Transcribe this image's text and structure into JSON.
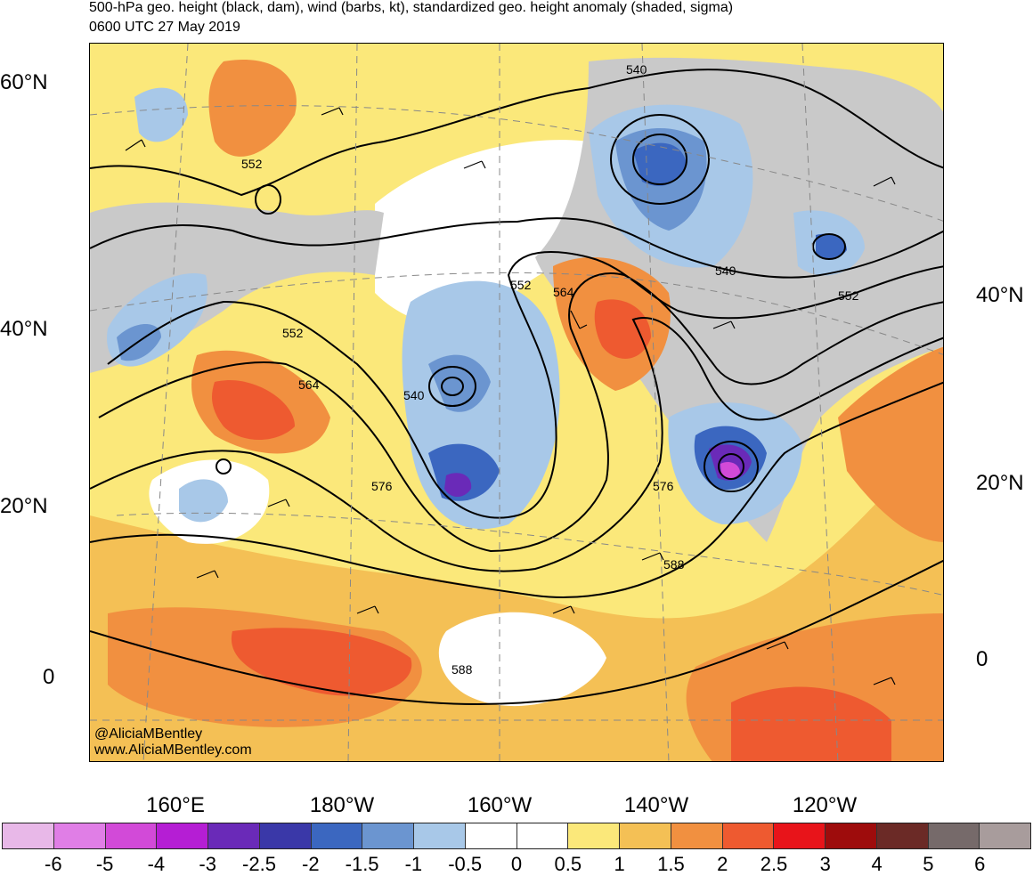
{
  "title_line1": "500-hPa geo. height (black, dam), wind (barbs, kt), standardized geo. height anomaly (shaded, sigma)",
  "title_line2": "0600 UTC 27 May 2019",
  "lat_labels_left": [
    "60°N",
    "40°N",
    "20°N",
    "0"
  ],
  "lat_labels_right": [
    "40°N",
    "20°N",
    "0"
  ],
  "lon_labels": [
    "160°E",
    "180°W",
    "160°W",
    "140°W",
    "120°W"
  ],
  "contour_labels": [
    "540",
    "540",
    "540",
    "552",
    "552",
    "552",
    "552",
    "564",
    "564",
    "576",
    "576",
    "588",
    "588"
  ],
  "credits": [
    "@AliciaMBentley",
    "www.AliciaMBentley.com"
  ],
  "colorbar": {
    "labels": [
      "-6",
      "-5",
      "-4",
      "-3",
      "-2.5",
      "-2",
      "-1.5",
      "-1",
      "-0.5",
      "0",
      "0.5",
      "1",
      "1.5",
      "2",
      "2.5",
      "3",
      "4",
      "5",
      "6"
    ],
    "colors": [
      "#e8b8e8",
      "#e07ee6",
      "#d24ad8",
      "#b51ed4",
      "#6a2ab8",
      "#3a38a8",
      "#3b67c0",
      "#6b95d0",
      "#a8c8e8",
      "#ffffff",
      "#ffffff",
      "#fbe87a",
      "#f4c055",
      "#f19040",
      "#ee5a30",
      "#e8141a",
      "#9e0c0c",
      "#6b2a26",
      "#766a6a",
      "#a89c9c"
    ]
  },
  "anomaly_colors": {
    "land": "#c9c9c9",
    "blue_light": "#a8c8e8",
    "blue_mid": "#6b95d0",
    "blue_dark": "#3b67c0",
    "purple": "#6a2ab8",
    "magenta": "#d24ad8",
    "yellow": "#fbe87a",
    "orange_light": "#f4c055",
    "orange": "#f19040",
    "red_orange": "#ee5a30",
    "red": "#e8141a"
  }
}
